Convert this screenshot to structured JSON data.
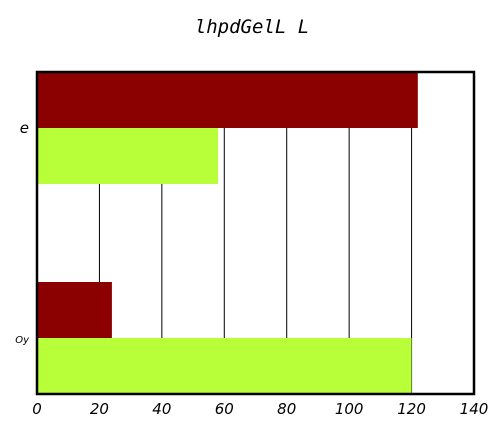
{
  "chart_data": {
    "type": "bar",
    "orientation": "horizontal",
    "title": "lhpdGelL L",
    "categories": [
      "e",
      "Oy"
    ],
    "series": [
      {
        "color": "#8b0000",
        "values": [
          122,
          24
        ]
      },
      {
        "color": "#b8ff3a",
        "values": [
          58,
          120
        ]
      }
    ],
    "xlim": [
      0,
      140
    ],
    "x_ticks": [
      0,
      20,
      40,
      60,
      80,
      100,
      120,
      140
    ],
    "grid": "vertical",
    "legend": "none",
    "xlabel": "",
    "ylabel": ""
  }
}
